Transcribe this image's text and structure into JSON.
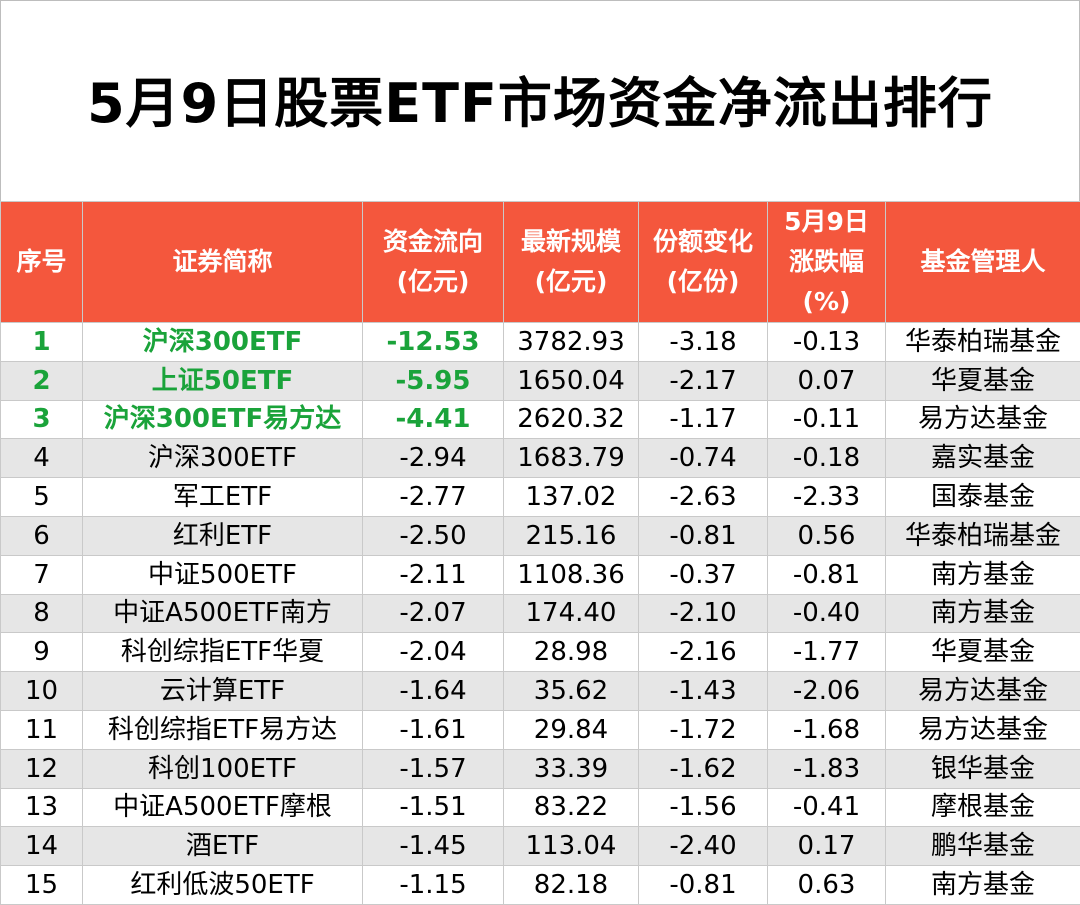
{
  "title": "5月9日股票ETF市场资金净流出排行",
  "headers": {
    "rank": "序号",
    "name": "证券简称",
    "flow_l1": "资金流向",
    "flow_l2": "(亿元)",
    "scale_l1": "最新规模",
    "scale_l2": "(亿元)",
    "share_l1": "份额变化",
    "share_l2": "(亿份)",
    "chg_l1": "5月9日",
    "chg_l2": "涨跌幅",
    "chg_l3": "(%)",
    "manager": "基金管理人"
  },
  "colors": {
    "header_bg": "#f4573d",
    "highlight_text": "#1aa33a",
    "stripe": "#e6e6e6"
  },
  "rows": [
    {
      "rank": "1",
      "name": "沪深300ETF",
      "flow": "-12.53",
      "scale": "3782.93",
      "share": "-3.18",
      "chg": "-0.13",
      "manager": "华泰柏瑞基金"
    },
    {
      "rank": "2",
      "name": "上证50ETF",
      "flow": "-5.95",
      "scale": "1650.04",
      "share": "-2.17",
      "chg": "0.07",
      "manager": "华夏基金"
    },
    {
      "rank": "3",
      "name": "沪深300ETF易方达",
      "flow": "-4.41",
      "scale": "2620.32",
      "share": "-1.17",
      "chg": "-0.11",
      "manager": "易方达基金"
    },
    {
      "rank": "4",
      "name": "沪深300ETF",
      "flow": "-2.94",
      "scale": "1683.79",
      "share": "-0.74",
      "chg": "-0.18",
      "manager": "嘉实基金"
    },
    {
      "rank": "5",
      "name": "军工ETF",
      "flow": "-2.77",
      "scale": "137.02",
      "share": "-2.63",
      "chg": "-2.33",
      "manager": "国泰基金"
    },
    {
      "rank": "6",
      "name": "红利ETF",
      "flow": "-2.50",
      "scale": "215.16",
      "share": "-0.81",
      "chg": "0.56",
      "manager": "华泰柏瑞基金"
    },
    {
      "rank": "7",
      "name": "中证500ETF",
      "flow": "-2.11",
      "scale": "1108.36",
      "share": "-0.37",
      "chg": "-0.81",
      "manager": "南方基金"
    },
    {
      "rank": "8",
      "name": "中证A500ETF南方",
      "flow": "-2.07",
      "scale": "174.40",
      "share": "-2.10",
      "chg": "-0.40",
      "manager": "南方基金"
    },
    {
      "rank": "9",
      "name": "科创综指ETF华夏",
      "flow": "-2.04",
      "scale": "28.98",
      "share": "-2.16",
      "chg": "-1.77",
      "manager": "华夏基金"
    },
    {
      "rank": "10",
      "name": "云计算ETF",
      "flow": "-1.64",
      "scale": "35.62",
      "share": "-1.43",
      "chg": "-2.06",
      "manager": "易方达基金"
    },
    {
      "rank": "11",
      "name": "科创综指ETF易方达",
      "flow": "-1.61",
      "scale": "29.84",
      "share": "-1.72",
      "chg": "-1.68",
      "manager": "易方达基金"
    },
    {
      "rank": "12",
      "name": "科创100ETF",
      "flow": "-1.57",
      "scale": "33.39",
      "share": "-1.62",
      "chg": "-1.83",
      "manager": "银华基金"
    },
    {
      "rank": "13",
      "name": "中证A500ETF摩根",
      "flow": "-1.51",
      "scale": "83.22",
      "share": "-1.56",
      "chg": "-0.41",
      "manager": "摩根基金"
    },
    {
      "rank": "14",
      "name": "酒ETF",
      "flow": "-1.45",
      "scale": "113.04",
      "share": "-2.40",
      "chg": "0.17",
      "manager": "鹏华基金"
    },
    {
      "rank": "15",
      "name": "红利低波50ETF",
      "flow": "-1.15",
      "scale": "82.18",
      "share": "-0.81",
      "chg": "0.63",
      "manager": "南方基金"
    }
  ]
}
